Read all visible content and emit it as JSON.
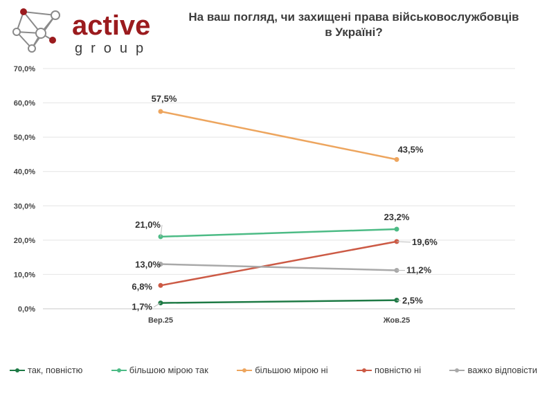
{
  "logo": {
    "word": "active",
    "sub": "group",
    "colors": {
      "brand": "#9b1b1e",
      "node_outline": "#8a8a8a",
      "node_fill": "#9b1b1e"
    }
  },
  "title": {
    "line1": "На ваш погляд, чи захищені права військовослужбовців",
    "line2": "в Україні?"
  },
  "chart_data": {
    "type": "line",
    "categories": [
      "Вер.25",
      "Жов.25"
    ],
    "ylim": [
      0,
      70
    ],
    "yticks": [
      "0,0%",
      "10,0%",
      "20,0%",
      "30,0%",
      "40,0%",
      "50,0%",
      "60,0%",
      "70,0%"
    ],
    "grid": true,
    "legend_position": "bottom",
    "series": [
      {
        "name": "так, повністю",
        "color": "#1e7a45",
        "values": [
          1.7,
          2.5
        ],
        "labels": [
          "1,7%",
          "2,5%"
        ]
      },
      {
        "name": "більшою мірою так",
        "color": "#4cbb85",
        "values": [
          21.0,
          23.2
        ],
        "labels": [
          "21,0%",
          "23,2%"
        ]
      },
      {
        "name": "більшою мірою ні",
        "color": "#eda55e",
        "values": [
          57.5,
          43.5
        ],
        "labels": [
          "57,5%",
          "43,5%"
        ]
      },
      {
        "name": "повністю ні",
        "color": "#cc5a45",
        "values": [
          6.8,
          19.6
        ],
        "labels": [
          "6,8%",
          "19,6%"
        ]
      },
      {
        "name": "важко відповісти",
        "color": "#a9a9a9",
        "values": [
          13.0,
          11.2
        ],
        "labels": [
          "13,0%",
          "11,2%"
        ]
      }
    ]
  }
}
